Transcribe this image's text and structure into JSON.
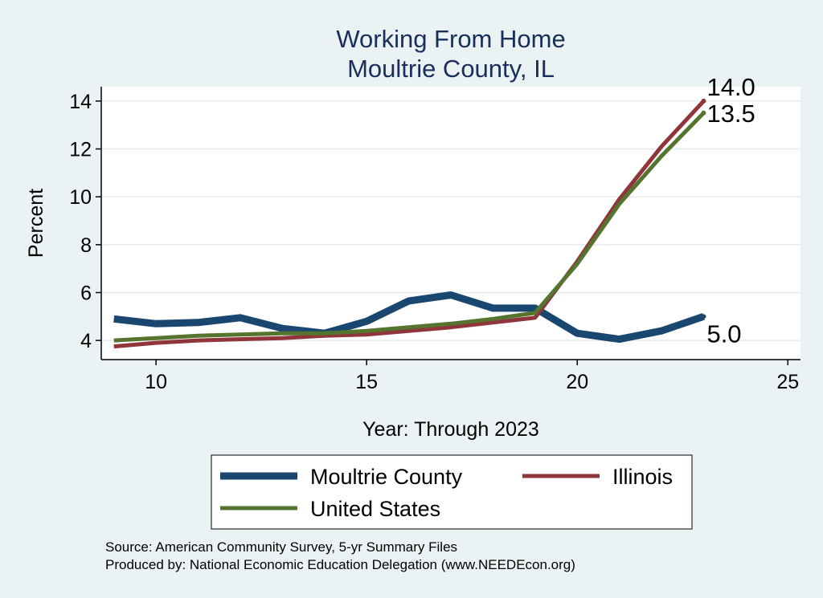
{
  "chart_data": {
    "type": "line",
    "title": [
      "Working From Home",
      "Moultrie County, IL"
    ],
    "xlabel": "Year: Through 2023",
    "ylabel": "Percent",
    "xlim": [
      8.7,
      25.3
    ],
    "ylim": [
      3.2,
      14.6
    ],
    "xticks": [
      10,
      15,
      20,
      25
    ],
    "yticks": [
      4,
      6,
      8,
      10,
      12,
      14
    ],
    "grid": true,
    "legend_position": "bottom",
    "series": [
      {
        "name": "Moultrie County",
        "color": "#1a476f",
        "x": [
          9,
          10,
          11,
          12,
          13,
          14,
          15,
          16,
          17,
          18,
          19,
          20,
          21,
          22,
          23
        ],
        "y": [
          4.9,
          4.7,
          4.75,
          4.95,
          4.5,
          4.3,
          4.8,
          5.65,
          5.9,
          5.35,
          5.35,
          4.3,
          4.05,
          4.4,
          5.0
        ],
        "end_label": "5.0"
      },
      {
        "name": "Illinois",
        "color": "#90353b",
        "x": [
          9,
          10,
          11,
          12,
          13,
          14,
          15,
          16,
          17,
          18,
          19,
          20,
          21,
          22,
          23
        ],
        "y": [
          3.75,
          3.9,
          4.0,
          4.05,
          4.1,
          4.2,
          4.25,
          4.4,
          4.55,
          4.75,
          4.95,
          7.3,
          9.9,
          12.1,
          14.0
        ],
        "end_label": "14.0"
      },
      {
        "name": "United States",
        "color": "#55752f",
        "x": [
          9,
          10,
          11,
          12,
          13,
          14,
          15,
          16,
          17,
          18,
          19,
          20,
          21,
          22,
          23
        ],
        "y": [
          4.0,
          4.1,
          4.2,
          4.25,
          4.3,
          4.3,
          4.4,
          4.55,
          4.7,
          4.9,
          5.15,
          7.2,
          9.7,
          11.7,
          13.5
        ],
        "end_label": "13.5"
      }
    ],
    "notes": [
      "Source: American Community Survey, 5-yr Summary Files",
      "Produced by: National Economic Education Delegation (www.NEEDEcon.org)"
    ]
  }
}
